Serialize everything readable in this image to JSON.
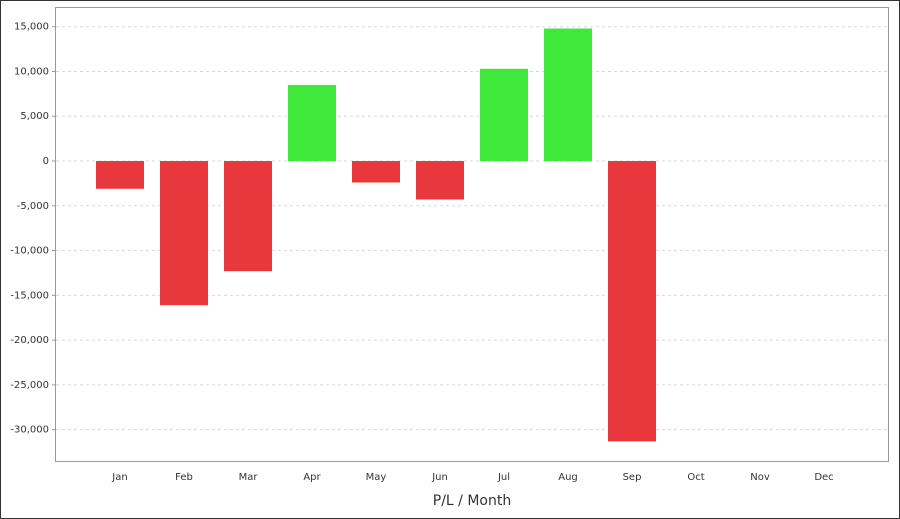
{
  "chart_data": {
    "type": "bar",
    "x_label": "P/L / Month",
    "categories": [
      "Jan",
      "Feb",
      "Mar",
      "Apr",
      "May",
      "Jun",
      "Jul",
      "Aug",
      "Sep",
      "Oct",
      "Nov",
      "Dec"
    ],
    "values": [
      -3100,
      -16100,
      -12300,
      8500,
      -2400,
      -4300,
      10300,
      14800,
      -31300,
      null,
      null,
      null
    ],
    "positive_color": "#3fe83a",
    "negative_color": "#e8383d",
    "ylim": [
      -33500,
      17200
    ],
    "yticks": [
      {
        "value": -30000,
        "label": "-30,000"
      },
      {
        "value": -25000,
        "label": "-25,000"
      },
      {
        "value": -20000,
        "label": "-20,000"
      },
      {
        "value": -15000,
        "label": "-15,000"
      },
      {
        "value": -10000,
        "label": "-10,000"
      },
      {
        "value": -5000,
        "label": "-5,000"
      },
      0,
      {
        "value": 5000,
        "label": "5,000"
      },
      {
        "value": 10000,
        "label": "10,000"
      },
      {
        "value": 15000,
        "label": "15,000"
      }
    ],
    "grid": true
  }
}
